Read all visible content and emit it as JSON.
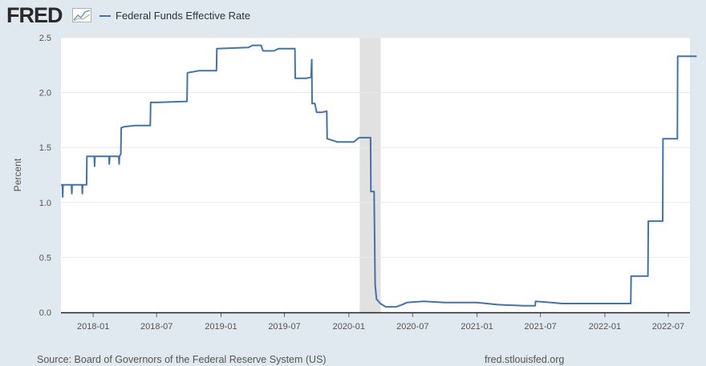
{
  "header": {
    "logo_text": "FRED",
    "logo_icon": "trend-line-icon",
    "legend_label": "Federal Funds Effective Rate"
  },
  "footer": {
    "source": "Source: Board of Governors of the Federal Reserve System (US)",
    "site": "fred.stlouisfed.org"
  },
  "colors": {
    "series": "#4572a7",
    "plot_background": "#ffffff",
    "page_background": "#e1e9f0",
    "recession_band": "#e1e1e1",
    "grid": "#e9e9e9"
  },
  "chart_data": {
    "type": "line",
    "title": "",
    "xlabel": "",
    "ylabel": "Percent",
    "ylim": [
      0,
      2.5
    ],
    "xlim": [
      "2017-10",
      "2022-09"
    ],
    "yticks": [
      "0.0",
      "0.5",
      "1.0",
      "1.5",
      "2.0",
      "2.5"
    ],
    "xticks": [
      "2018-01",
      "2018-07",
      "2019-01",
      "2019-07",
      "2020-01",
      "2020-07",
      "2021-01",
      "2021-07",
      "2022-01",
      "2022-07"
    ],
    "grid": true,
    "legend": "top-left",
    "recession": {
      "start": "2020-02",
      "end": "2020-04"
    },
    "series": [
      {
        "name": "Federal Funds Effective Rate",
        "points": [
          [
            "2017-10-01",
            1.16
          ],
          [
            "2017-10-05",
            1.16
          ],
          [
            "2017-10-06",
            1.05
          ],
          [
            "2017-10-07",
            1.16
          ],
          [
            "2017-10-31",
            1.16
          ],
          [
            "2017-11-01",
            1.08
          ],
          [
            "2017-11-02",
            1.16
          ],
          [
            "2017-11-30",
            1.16
          ],
          [
            "2017-12-01",
            1.08
          ],
          [
            "2017-12-02",
            1.16
          ],
          [
            "2017-12-13",
            1.16
          ],
          [
            "2017-12-14",
            1.42
          ],
          [
            "2018-01-04",
            1.42
          ],
          [
            "2018-01-05",
            1.33
          ],
          [
            "2018-01-06",
            1.42
          ],
          [
            "2018-02-15",
            1.42
          ],
          [
            "2018-02-16",
            1.35
          ],
          [
            "2018-02-17",
            1.42
          ],
          [
            "2018-03-15",
            1.42
          ],
          [
            "2018-03-16",
            1.35
          ],
          [
            "2018-03-17",
            1.42
          ],
          [
            "2018-03-21",
            1.44
          ],
          [
            "2018-03-22",
            1.68
          ],
          [
            "2018-04-01",
            1.69
          ],
          [
            "2018-05-01",
            1.7
          ],
          [
            "2018-06-13",
            1.7
          ],
          [
            "2018-06-14",
            1.91
          ],
          [
            "2018-07-01",
            1.91
          ],
          [
            "2018-09-26",
            1.92
          ],
          [
            "2018-09-27",
            2.18
          ],
          [
            "2018-11-01",
            2.2
          ],
          [
            "2018-12-19",
            2.2
          ],
          [
            "2018-12-20",
            2.4
          ],
          [
            "2019-03-20",
            2.41
          ],
          [
            "2019-04-01",
            2.43
          ],
          [
            "2019-04-25",
            2.43
          ],
          [
            "2019-05-01",
            2.38
          ],
          [
            "2019-06-01",
            2.38
          ],
          [
            "2019-06-15",
            2.4
          ],
          [
            "2019-07-31",
            2.4
          ],
          [
            "2019-08-01",
            2.13
          ],
          [
            "2019-09-01",
            2.13
          ],
          [
            "2019-09-15",
            2.14
          ],
          [
            "2019-09-17",
            2.3
          ],
          [
            "2019-09-18",
            1.9
          ],
          [
            "2019-09-26",
            1.9
          ],
          [
            "2019-10-01",
            1.82
          ],
          [
            "2019-10-15",
            1.82
          ],
          [
            "2019-10-30",
            1.83
          ],
          [
            "2019-10-31",
            1.58
          ],
          [
            "2019-11-30",
            1.55
          ],
          [
            "2019-12-31",
            1.55
          ],
          [
            "2020-01-15",
            1.55
          ],
          [
            "2020-01-30",
            1.59
          ],
          [
            "2020-03-03",
            1.59
          ],
          [
            "2020-03-04",
            1.1
          ],
          [
            "2020-03-13",
            1.1
          ],
          [
            "2020-03-16",
            0.25
          ],
          [
            "2020-03-20",
            0.12
          ],
          [
            "2020-03-31",
            0.08
          ],
          [
            "2020-04-15",
            0.05
          ],
          [
            "2020-05-15",
            0.05
          ],
          [
            "2020-06-01",
            0.07
          ],
          [
            "2020-06-15",
            0.09
          ],
          [
            "2020-08-01",
            0.1
          ],
          [
            "2020-10-01",
            0.09
          ],
          [
            "2021-01-01",
            0.09
          ],
          [
            "2021-03-01",
            0.07
          ],
          [
            "2021-05-15",
            0.06
          ],
          [
            "2021-06-16",
            0.06
          ],
          [
            "2021-06-17",
            0.1
          ],
          [
            "2021-08-01",
            0.09
          ],
          [
            "2021-09-01",
            0.08
          ],
          [
            "2022-03-16",
            0.08
          ],
          [
            "2022-03-17",
            0.33
          ],
          [
            "2022-05-04",
            0.33
          ],
          [
            "2022-05-05",
            0.83
          ],
          [
            "2022-06-15",
            0.83
          ],
          [
            "2022-06-16",
            1.58
          ],
          [
            "2022-07-27",
            1.58
          ],
          [
            "2022-07-28",
            2.33
          ],
          [
            "2022-09-20",
            2.33
          ]
        ]
      }
    ]
  }
}
